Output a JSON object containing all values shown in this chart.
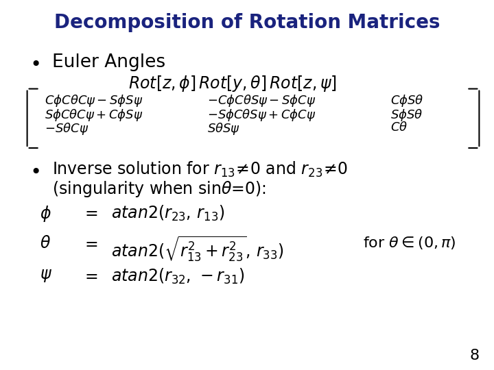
{
  "title": "Decomposition of Rotation Matrices",
  "title_color": "#1a237e",
  "bg_color": "#ffffff",
  "page_number": "8",
  "font_size_title": 20,
  "font_size_body": 16,
  "font_size_math": 15,
  "font_size_small": 13
}
